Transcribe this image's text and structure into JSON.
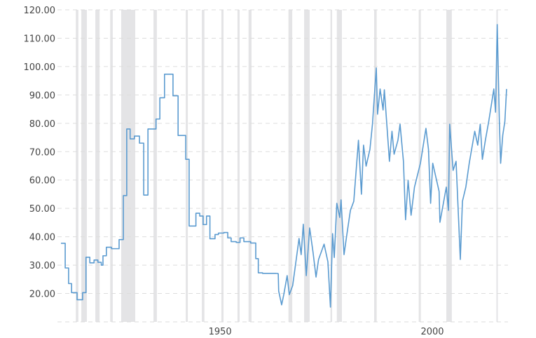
{
  "chart_data": {
    "type": "line",
    "title": "",
    "xlabel": "",
    "ylabel": "",
    "xlim": [
      1912.5,
      2017.5
    ],
    "ylim": [
      10,
      120
    ],
    "grid": true,
    "legend": "none",
    "y_ticks": [
      20,
      30,
      40,
      50,
      60,
      70,
      80,
      90,
      100,
      110,
      120
    ],
    "y_tick_labels": [
      "20.00",
      "30.00",
      "40.00",
      "50.00",
      "60.00",
      "70.00",
      "80.00",
      "90.00",
      "100.00",
      "110.00",
      "120.00"
    ],
    "x_ticks": [
      1950,
      2000
    ],
    "x_tick_labels": [
      "1950",
      "2000"
    ],
    "colors": {
      "line": "#5b9bd0",
      "band": "#e4e4e6",
      "grid": "#dddddd"
    },
    "shaded_bands": [
      [
        1916.0,
        1916.6
      ],
      [
        1917.3,
        1918.6
      ],
      [
        1920.6,
        1921.6
      ],
      [
        1924.1,
        1924.7
      ],
      [
        1926.7,
        1930.0
      ],
      [
        1934.3,
        1935.1
      ],
      [
        1941.9,
        1942.4
      ],
      [
        1945.7,
        1946.3
      ],
      [
        1950.3,
        1950.8
      ],
      [
        1954.1,
        1954.6
      ],
      [
        1956.7,
        1957.4
      ],
      [
        1966.1,
        1967.0
      ],
      [
        1969.8,
        1971.1
      ],
      [
        1976.0,
        1976.4
      ],
      [
        1977.5,
        1978.7
      ],
      [
        1986.3,
        1986.9
      ],
      [
        1996.8,
        1997.3
      ],
      [
        2003.3,
        2004.6
      ],
      [
        2015.1,
        2015.4
      ]
    ],
    "step_series": [
      [
        1912.5,
        37.7
      ],
      [
        1913.5,
        29.0
      ],
      [
        1914.3,
        23.5
      ],
      [
        1915.0,
        20.3
      ],
      [
        1916.3,
        17.8
      ],
      [
        1917.6,
        20.3
      ],
      [
        1918.4,
        32.8
      ],
      [
        1919.3,
        30.8
      ],
      [
        1920.3,
        31.8
      ],
      [
        1921.2,
        31.0
      ],
      [
        1922.0,
        30.0
      ],
      [
        1922.4,
        33.3
      ],
      [
        1923.2,
        36.3
      ],
      [
        1924.4,
        35.8
      ],
      [
        1926.2,
        39.0
      ],
      [
        1927.2,
        54.5
      ],
      [
        1928.0,
        78.0
      ],
      [
        1928.8,
        74.5
      ],
      [
        1929.8,
        75.5
      ],
      [
        1931.0,
        73.0
      ],
      [
        1932.0,
        54.7
      ],
      [
        1933.0,
        78.0
      ],
      [
        1934.9,
        81.5
      ],
      [
        1935.8,
        89.0
      ],
      [
        1936.9,
        97.3
      ],
      [
        1938.9,
        89.7
      ],
      [
        1940.1,
        75.7
      ],
      [
        1941.9,
        67.3
      ],
      [
        1942.7,
        43.8
      ],
      [
        1944.3,
        48.3
      ],
      [
        1945.2,
        47.3
      ],
      [
        1946.0,
        44.3
      ],
      [
        1946.8,
        47.3
      ],
      [
        1947.6,
        39.3
      ],
      [
        1948.8,
        40.8
      ],
      [
        1949.6,
        41.3
      ],
      [
        1950.9,
        41.5
      ],
      [
        1951.8,
        39.6
      ],
      [
        1952.6,
        38.3
      ],
      [
        1953.8,
        38.0
      ],
      [
        1954.7,
        39.6
      ],
      [
        1955.6,
        38.3
      ],
      [
        1957.2,
        37.8
      ],
      [
        1958.4,
        32.3
      ],
      [
        1959.0,
        27.3
      ],
      [
        1960.0,
        27.1
      ],
      [
        1963.3,
        27.1
      ]
    ],
    "line_series": [
      [
        1963.3,
        27.1
      ],
      [
        1963.7,
        27.0
      ],
      [
        1963.8,
        20.9
      ],
      [
        1964.5,
        16.0
      ],
      [
        1965.0,
        19.6
      ],
      [
        1965.8,
        26.3
      ],
      [
        1966.3,
        19.6
      ],
      [
        1967.1,
        22.8
      ],
      [
        1968.0,
        32.7
      ],
      [
        1968.6,
        39.4
      ],
      [
        1969.1,
        33.7
      ],
      [
        1969.6,
        44.4
      ],
      [
        1970.3,
        26.3
      ],
      [
        1971.1,
        43.1
      ],
      [
        1971.9,
        34.5
      ],
      [
        1972.6,
        25.8
      ],
      [
        1973.2,
        32.0
      ],
      [
        1974.5,
        37.4
      ],
      [
        1975.4,
        31.2
      ],
      [
        1976.0,
        15.2
      ],
      [
        1976.5,
        41.1
      ],
      [
        1976.9,
        32.7
      ],
      [
        1977.5,
        51.8
      ],
      [
        1978.2,
        46.8
      ],
      [
        1978.5,
        53.0
      ],
      [
        1979.2,
        33.7
      ],
      [
        1979.8,
        40.1
      ],
      [
        1980.7,
        49.3
      ],
      [
        1981.5,
        52.5
      ],
      [
        1982.6,
        74.0
      ],
      [
        1983.3,
        55.0
      ],
      [
        1983.8,
        72.3
      ],
      [
        1984.4,
        64.9
      ],
      [
        1985.3,
        70.8
      ],
      [
        1985.9,
        79.7
      ],
      [
        1986.8,
        99.5
      ],
      [
        1987.1,
        83.2
      ],
      [
        1987.7,
        92.1
      ],
      [
        1988.4,
        84.7
      ],
      [
        1988.7,
        91.8
      ],
      [
        1989.4,
        77.2
      ],
      [
        1989.9,
        66.6
      ],
      [
        1990.5,
        77.2
      ],
      [
        1991.0,
        69.1
      ],
      [
        1991.9,
        74.0
      ],
      [
        1992.4,
        79.7
      ],
      [
        1993.2,
        66.6
      ],
      [
        1993.7,
        46.0
      ],
      [
        1994.3,
        59.9
      ],
      [
        1995.0,
        47.6
      ],
      [
        1995.8,
        57.5
      ],
      [
        1997.2,
        65.9
      ],
      [
        1998.5,
        78.2
      ],
      [
        1999.1,
        70.8
      ],
      [
        1999.6,
        51.8
      ],
      [
        2000.1,
        65.9
      ],
      [
        2001.6,
        56.0
      ],
      [
        2001.8,
        45.1
      ],
      [
        2003.3,
        57.5
      ],
      [
        2003.8,
        49.3
      ],
      [
        2004.1,
        79.7
      ],
      [
        2004.9,
        63.4
      ],
      [
        2005.6,
        66.6
      ],
      [
        2006.6,
        32.0
      ],
      [
        2007.1,
        52.5
      ],
      [
        2007.9,
        57.5
      ],
      [
        2008.7,
        65.9
      ],
      [
        2010.0,
        77.2
      ],
      [
        2010.7,
        72.3
      ],
      [
        2011.3,
        79.7
      ],
      [
        2011.8,
        67.3
      ],
      [
        2012.5,
        74.0
      ],
      [
        2013.3,
        80.7
      ],
      [
        2014.5,
        92.1
      ],
      [
        2014.9,
        83.9
      ],
      [
        2015.3,
        114.8
      ],
      [
        2015.8,
        80.7
      ],
      [
        2016.1,
        65.9
      ],
      [
        2016.6,
        75.8
      ],
      [
        2017.1,
        80.7
      ],
      [
        2017.5,
        92.1
      ]
    ]
  }
}
